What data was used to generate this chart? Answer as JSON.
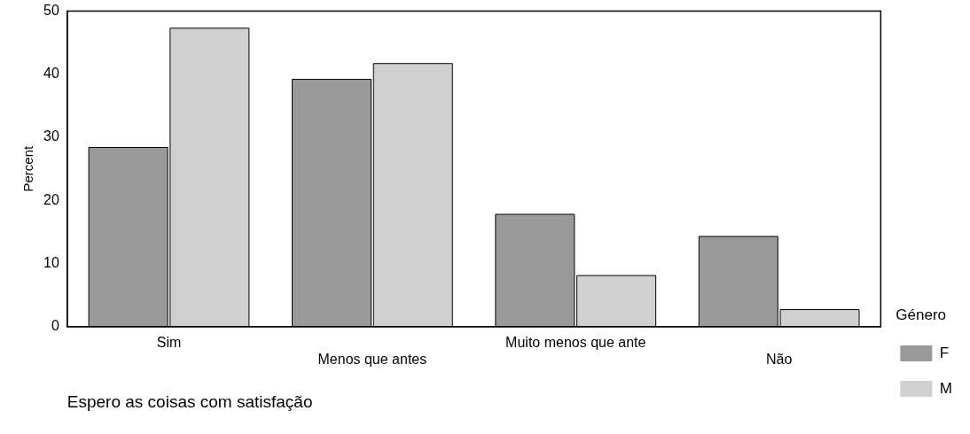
{
  "chart_data": {
    "type": "bar",
    "xlabel": "Espero as coisas com satisfação",
    "ylabel": "Percent",
    "legend_title": "Género",
    "categories": [
      "Sim",
      "Menos que antes",
      "Muito menos que ante",
      "Não"
    ],
    "series": [
      {
        "name": "F",
        "color": "#9a9a9a",
        "values": [
          28.4,
          39.2,
          17.8,
          14.3
        ]
      },
      {
        "name": "M",
        "color": "#d0d0d0",
        "values": [
          47.3,
          41.7,
          8.1,
          2.7
        ]
      }
    ],
    "ylim": [
      0,
      50
    ],
    "yticks": [
      0,
      10,
      20,
      30,
      40,
      50
    ],
    "grid": false,
    "legend": "right"
  }
}
